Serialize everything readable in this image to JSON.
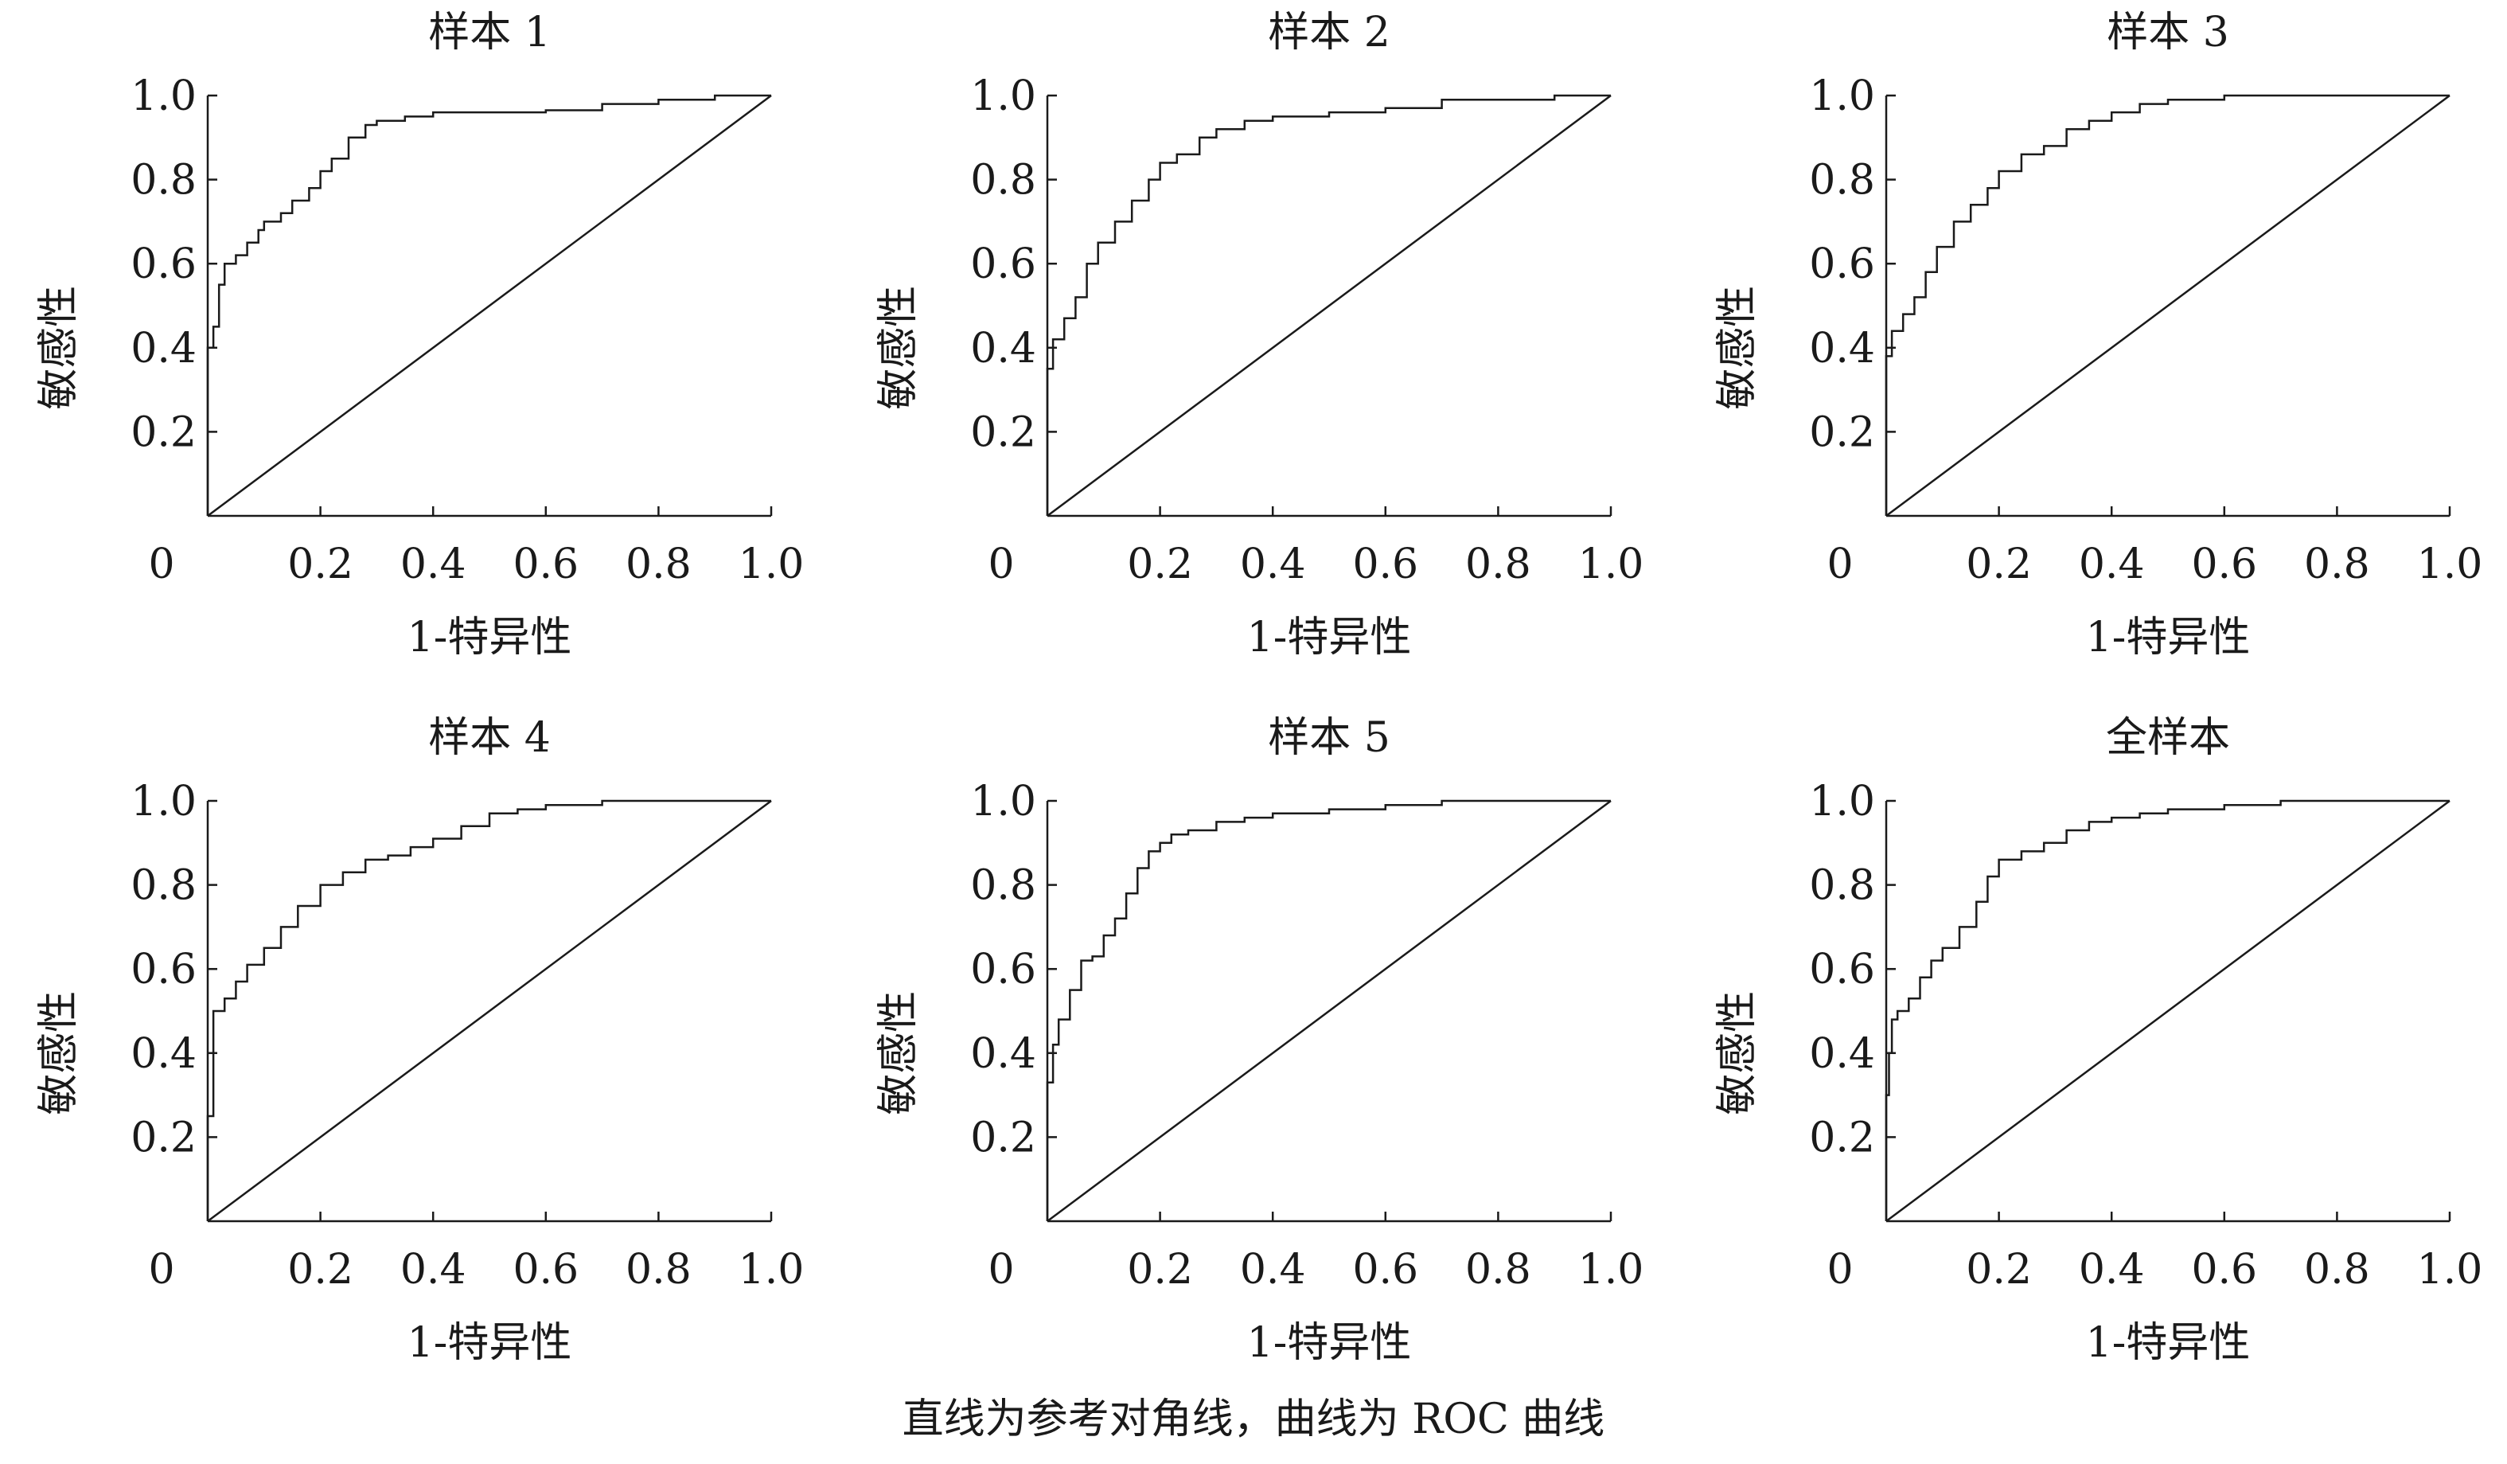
{
  "caption": "直线为参考对角线，曲线为 ROC 曲线",
  "chart_data": [
    {
      "type": "line",
      "title": "样本 1",
      "xlabel": "1-特异性",
      "ylabel": "敏感性",
      "xlim": [
        0,
        1
      ],
      "ylim": [
        0,
        1
      ],
      "x_ticks": [
        "0",
        "0.2",
        "0.4",
        "0.6",
        "0.8",
        "1.0"
      ],
      "y_ticks": [
        "0.2",
        "0.4",
        "0.6",
        "0.8",
        "1.0"
      ],
      "series": [
        {
          "x": [
            0,
            0,
            0.01,
            0.02,
            0.03,
            0.05,
            0.07,
            0.09,
            0.1,
            0.13,
            0.15,
            0.18,
            0.2,
            0.22,
            0.25,
            0.28,
            0.3,
            0.35,
            0.4,
            0.5,
            0.6,
            0.7,
            0.8,
            0.9,
            1.0
          ],
          "y": [
            0,
            0.4,
            0.45,
            0.55,
            0.6,
            0.62,
            0.65,
            0.68,
            0.7,
            0.72,
            0.75,
            0.78,
            0.82,
            0.85,
            0.9,
            0.93,
            0.94,
            0.95,
            0.96,
            0.96,
            0.965,
            0.98,
            0.99,
            1.0,
            1.0
          ]
        },
        {
          "x": [
            0,
            1
          ],
          "y": [
            0,
            1
          ]
        }
      ]
    },
    {
      "type": "line",
      "title": "样本 2",
      "xlabel": "1-特异性",
      "ylabel": "敏感性",
      "xlim": [
        0,
        1
      ],
      "ylim": [
        0,
        1
      ],
      "x_ticks": [
        "0",
        "0.2",
        "0.4",
        "0.6",
        "0.8",
        "1.0"
      ],
      "y_ticks": [
        "0.2",
        "0.4",
        "0.6",
        "0.8",
        "1.0"
      ],
      "series": [
        {
          "x": [
            0,
            0,
            0.01,
            0.03,
            0.05,
            0.07,
            0.09,
            0.12,
            0.15,
            0.18,
            0.2,
            0.23,
            0.27,
            0.3,
            0.35,
            0.4,
            0.5,
            0.6,
            0.7,
            0.8,
            0.9,
            1.0
          ],
          "y": [
            0,
            0.35,
            0.42,
            0.47,
            0.52,
            0.6,
            0.65,
            0.7,
            0.75,
            0.8,
            0.84,
            0.86,
            0.9,
            0.92,
            0.94,
            0.95,
            0.96,
            0.97,
            0.99,
            0.99,
            1.0,
            1.0
          ]
        },
        {
          "x": [
            0,
            1
          ],
          "y": [
            0,
            1
          ]
        }
      ]
    },
    {
      "type": "line",
      "title": "样本 3",
      "xlabel": "1-特异性",
      "ylabel": "敏感性",
      "xlim": [
        0,
        1
      ],
      "ylim": [
        0,
        1
      ],
      "x_ticks": [
        "0",
        "0.2",
        "0.4",
        "0.6",
        "0.8",
        "1.0"
      ],
      "y_ticks": [
        "0.2",
        "0.4",
        "0.6",
        "0.8",
        "1.0"
      ],
      "series": [
        {
          "x": [
            0,
            0,
            0.01,
            0.03,
            0.05,
            0.07,
            0.09,
            0.12,
            0.15,
            0.18,
            0.2,
            0.24,
            0.28,
            0.32,
            0.36,
            0.4,
            0.45,
            0.5,
            0.6,
            0.7,
            0.8,
            0.9,
            1.0
          ],
          "y": [
            0,
            0.38,
            0.44,
            0.48,
            0.52,
            0.58,
            0.64,
            0.7,
            0.74,
            0.78,
            0.82,
            0.86,
            0.88,
            0.92,
            0.94,
            0.96,
            0.98,
            0.99,
            1.0,
            1.0,
            1.0,
            1.0,
            1.0
          ]
        },
        {
          "x": [
            0,
            1
          ],
          "y": [
            0,
            1
          ]
        }
      ]
    },
    {
      "type": "line",
      "title": "样本 4",
      "xlabel": "1-特异性",
      "ylabel": "敏感性",
      "xlim": [
        0,
        1
      ],
      "ylim": [
        0,
        1
      ],
      "x_ticks": [
        "0",
        "0.2",
        "0.4",
        "0.6",
        "0.8",
        "1.0"
      ],
      "y_ticks": [
        "0.2",
        "0.4",
        "0.6",
        "0.8",
        "1.0"
      ],
      "series": [
        {
          "x": [
            0,
            0,
            0.01,
            0.03,
            0.05,
            0.07,
            0.1,
            0.13,
            0.16,
            0.2,
            0.24,
            0.28,
            0.32,
            0.36,
            0.4,
            0.45,
            0.5,
            0.55,
            0.6,
            0.7,
            0.8,
            0.9,
            1.0
          ],
          "y": [
            0,
            0.25,
            0.5,
            0.53,
            0.57,
            0.61,
            0.65,
            0.7,
            0.75,
            0.8,
            0.83,
            0.86,
            0.87,
            0.89,
            0.91,
            0.94,
            0.97,
            0.98,
            0.99,
            1.0,
            1.0,
            1.0,
            1.0
          ]
        },
        {
          "x": [
            0,
            1
          ],
          "y": [
            0,
            1
          ]
        }
      ]
    },
    {
      "type": "line",
      "title": "样本 5",
      "xlabel": "1-特异性",
      "ylabel": "敏感性",
      "xlim": [
        0,
        1
      ],
      "ylim": [
        0,
        1
      ],
      "x_ticks": [
        "0",
        "0.2",
        "0.4",
        "0.6",
        "0.8",
        "1.0"
      ],
      "y_ticks": [
        "0.2",
        "0.4",
        "0.6",
        "0.8",
        "1.0"
      ],
      "series": [
        {
          "x": [
            0,
            0,
            0.01,
            0.02,
            0.04,
            0.06,
            0.08,
            0.1,
            0.12,
            0.14,
            0.16,
            0.18,
            0.2,
            0.22,
            0.25,
            0.3,
            0.35,
            0.4,
            0.5,
            0.6,
            0.7,
            0.8,
            0.9,
            1.0
          ],
          "y": [
            0,
            0.33,
            0.42,
            0.48,
            0.55,
            0.62,
            0.63,
            0.68,
            0.72,
            0.78,
            0.84,
            0.88,
            0.9,
            0.92,
            0.93,
            0.95,
            0.96,
            0.97,
            0.98,
            0.99,
            1.0,
            1.0,
            1.0,
            1.0
          ]
        },
        {
          "x": [
            0,
            1
          ],
          "y": [
            0,
            1
          ]
        }
      ]
    },
    {
      "type": "line",
      "title": "全样本",
      "xlabel": "1-特异性",
      "ylabel": "敏感性",
      "xlim": [
        0,
        1
      ],
      "ylim": [
        0,
        1
      ],
      "x_ticks": [
        "0",
        "0.2",
        "0.4",
        "0.6",
        "0.8",
        "1.0"
      ],
      "y_ticks": [
        "0.2",
        "0.4",
        "0.6",
        "0.8",
        "1.0"
      ],
      "series": [
        {
          "x": [
            0,
            0,
            0.005,
            0.01,
            0.02,
            0.04,
            0.06,
            0.08,
            0.1,
            0.13,
            0.16,
            0.18,
            0.2,
            0.24,
            0.28,
            0.32,
            0.36,
            0.4,
            0.45,
            0.5,
            0.6,
            0.7,
            0.8,
            0.9,
            1.0
          ],
          "y": [
            0,
            0.3,
            0.4,
            0.48,
            0.5,
            0.53,
            0.58,
            0.62,
            0.65,
            0.7,
            0.76,
            0.82,
            0.86,
            0.88,
            0.9,
            0.93,
            0.95,
            0.96,
            0.97,
            0.98,
            0.99,
            1.0,
            1.0,
            1.0,
            1.0
          ]
        },
        {
          "x": [
            0,
            1
          ],
          "y": [
            0,
            1
          ]
        }
      ]
    }
  ]
}
